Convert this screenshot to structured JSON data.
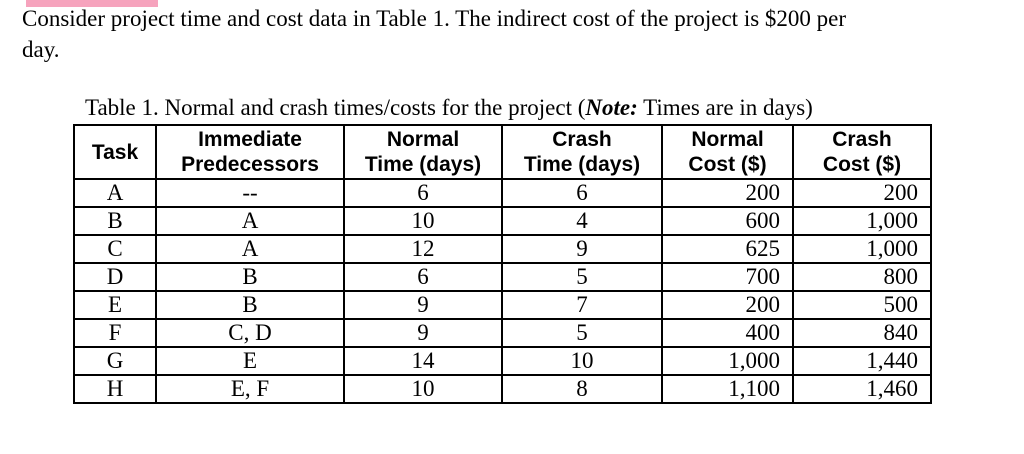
{
  "page": {
    "background_color": "#ffffff",
    "text_color": "#000000",
    "highlight_mark_color": "#f6a3bd",
    "table_border_color": "#000000"
  },
  "paragraph": {
    "lines": [
      "Consider project time and cost data in Table 1. The indirect cost of the project is $200 per",
      "day."
    ],
    "full_text": "Consider project time and cost data in Table 1. The indirect cost of the project is $200 per day."
  },
  "table": {
    "caption": {
      "prefix": "Table 1. Normal and crash times/costs for the project (",
      "note_label": "Note:",
      "suffix": " Times are in days)"
    },
    "headers": [
      {
        "lines": [
          "Task"
        ]
      },
      {
        "lines": [
          "Immediate",
          "Predecessors"
        ]
      },
      {
        "lines": [
          "Normal",
          "Time (days)"
        ]
      },
      {
        "lines": [
          "Crash",
          "Time (days)"
        ]
      },
      {
        "lines": [
          "Normal",
          "Cost ($)"
        ]
      },
      {
        "lines": [
          "Crash",
          "Cost ($)"
        ]
      }
    ],
    "rows": [
      {
        "task": "A",
        "predecessors": "--",
        "normal_time": "6",
        "crash_time": "6",
        "normal_cost": "200",
        "crash_cost": "200"
      },
      {
        "task": "B",
        "predecessors": "A",
        "normal_time": "10",
        "crash_time": "4",
        "normal_cost": "600",
        "crash_cost": "1,000"
      },
      {
        "task": "C",
        "predecessors": "A",
        "normal_time": "12",
        "crash_time": "9",
        "normal_cost": "625",
        "crash_cost": "1,000"
      },
      {
        "task": "D",
        "predecessors": "B",
        "normal_time": "6",
        "crash_time": "5",
        "normal_cost": "700",
        "crash_cost": "800"
      },
      {
        "task": "E",
        "predecessors": "B",
        "normal_time": "9",
        "crash_time": "7",
        "normal_cost": "200",
        "crash_cost": "500"
      },
      {
        "task": "F",
        "predecessors": "C, D",
        "normal_time": "9",
        "crash_time": "5",
        "normal_cost": "400",
        "crash_cost": "840"
      },
      {
        "task": "G",
        "predecessors": "E",
        "normal_time": "14",
        "crash_time": "10",
        "normal_cost": "1,000",
        "crash_cost": "1,440"
      },
      {
        "task": "H",
        "predecessors": "E, F",
        "normal_time": "10",
        "crash_time": "8",
        "normal_cost": "1,100",
        "crash_cost": "1,460"
      }
    ]
  }
}
